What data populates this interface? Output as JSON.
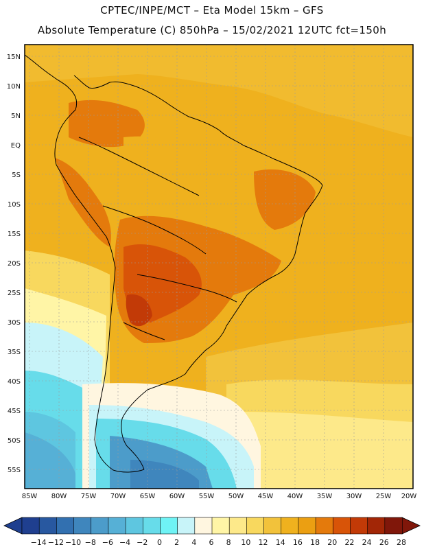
{
  "header": {
    "line1": "CPTEC/INPE/MCT –  Eta Model 15km – GFS",
    "line2": "Absolute Temperature (C) 850hPa – 15/02/2021 12UTC fct=150h"
  },
  "map": {
    "lat_labels": [
      "15N",
      "10N",
      "5N",
      "EQ",
      "5S",
      "10S",
      "15S",
      "20S",
      "25S",
      "30S",
      "35S",
      "40S",
      "45S",
      "50S",
      "55S"
    ],
    "lon_labels": [
      "85W",
      "80W",
      "75W",
      "70W",
      "65W",
      "60W",
      "55W",
      "50W",
      "45W",
      "40W",
      "35W",
      "30W",
      "25W",
      "20W"
    ]
  },
  "colorbar": {
    "ticks": [
      "-14",
      "-12",
      "-10",
      "-8",
      "-6",
      "-4",
      "-2",
      "0",
      "2",
      "4",
      "6",
      "8",
      "10",
      "12",
      "14",
      "16",
      "18",
      "20",
      "22",
      "24",
      "26",
      "28"
    ],
    "colors": [
      "#1f3f8f",
      "#2858a0",
      "#3270b0",
      "#3f86bd",
      "#4c9cca",
      "#56b0d6",
      "#5ec6e0",
      "#67dcea",
      "#6ff3f5",
      "#c8f4f9",
      "#fff6e0",
      "#fff5a6",
      "#fde98a",
      "#f8d85e",
      "#f2c23b",
      "#efb11e",
      "#eb9f12",
      "#e47a0c",
      "#d85408",
      "#c23a07",
      "#a22606",
      "#80170a"
    ]
  }
}
